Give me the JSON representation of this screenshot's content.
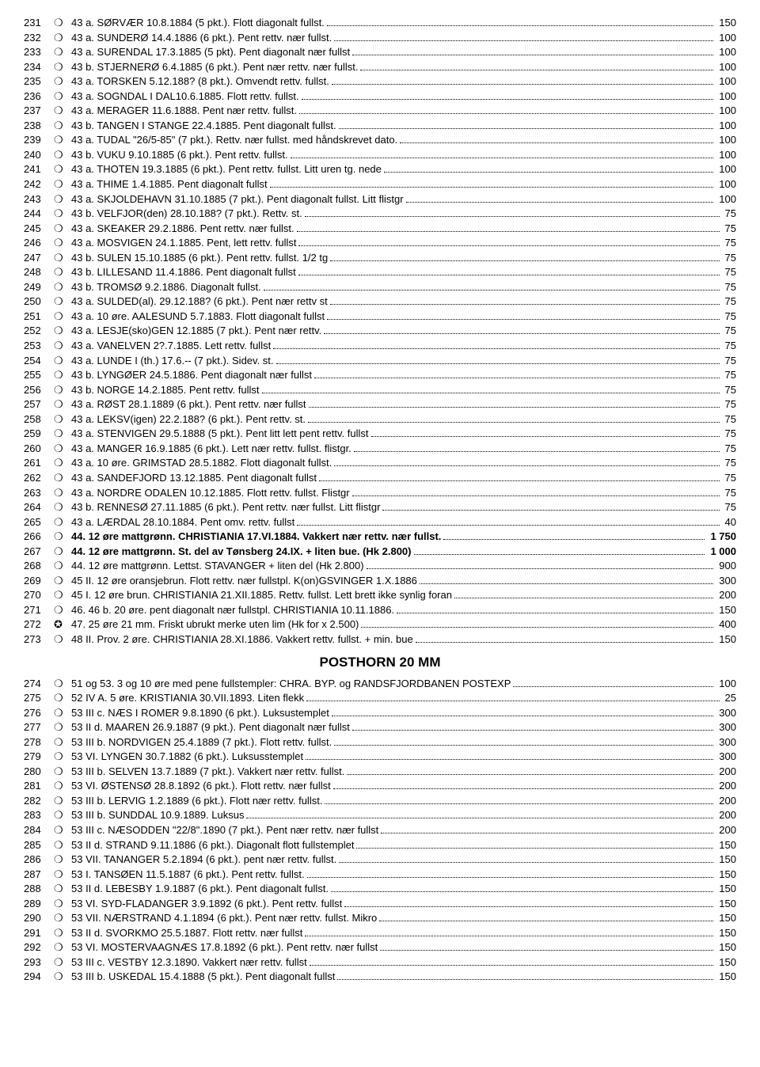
{
  "section1": [
    {
      "n": "231",
      "m": "❍",
      "d": "43 a. SØRVÆR 10.8.1884 (5 pkt.). Flott diagonalt fullst.",
      "p": "150"
    },
    {
      "n": "232",
      "m": "❍",
      "d": "43 a. SUNDERØ 14.4.1886 (6 pkt.). Pent rettv. nær fullst.",
      "p": "100"
    },
    {
      "n": "233",
      "m": "❍",
      "d": "43 a. SURENDAL 17.3.1885 (5 pkt). Pent diagonalt nær fullst",
      "p": "100"
    },
    {
      "n": "234",
      "m": "❍",
      "d": "43 b. STJERNERØ 6.4.1885 (6 pkt.). Pent nær rettv. nær fullst.",
      "p": "100"
    },
    {
      "n": "235",
      "m": "❍",
      "d": "43 a. TORSKEN 5.12.188? (8 pkt.). Omvendt rettv. fullst.",
      "p": "100"
    },
    {
      "n": "236",
      "m": "❍",
      "d": "43 a. SOGNDAL I DAL10.6.1885. Flott rettv. fullst.",
      "p": "100"
    },
    {
      "n": "237",
      "m": "❍",
      "d": "43 a. MERAGER 11.6.1888. Pent nær rettv. fullst.",
      "p": "100"
    },
    {
      "n": "238",
      "m": "❍",
      "d": "43 b. TANGEN I STANGE 22.4.1885. Pent diagonalt fullst.",
      "p": "100"
    },
    {
      "n": "239",
      "m": "❍",
      "d": "43 a. TUDAL \"26/5-85\" (7 pkt.). Rettv. nær fullst. med håndskrevet dato.",
      "p": "100"
    },
    {
      "n": "240",
      "m": "❍",
      "d": "43 b. VUKU 9.10.1885 (6 pkt.). Pent rettv. fullst.",
      "p": "100"
    },
    {
      "n": "241",
      "m": "❍",
      "d": "43 a. THOTEN 19.3.1885 (6 pkt.). Pent rettv. fullst. Litt uren tg. nede",
      "p": "100"
    },
    {
      "n": "242",
      "m": "❍",
      "d": "43 a. THIME 1.4.1885. Pent diagonalt fullst",
      "p": "100"
    },
    {
      "n": "243",
      "m": "❍",
      "d": "43 a. SKJOLDEHAVN 31.10.1885 (7 pkt.). Pent diagonalt fullst. Litt flistgr",
      "p": "100"
    },
    {
      "n": "244",
      "m": "❍",
      "d": "43 b. VELFJOR(den) 28.10.188? (7 pkt.). Rettv. st.",
      "p": "75"
    },
    {
      "n": "245",
      "m": "❍",
      "d": "43 a. SKEAKER 29.2.1886. Pent rettv. nær fullst.",
      "p": "75"
    },
    {
      "n": "246",
      "m": "❍",
      "d": "43 a. MOSVIGEN 24.1.1885. Pent, lett rettv. fullst",
      "p": "75"
    },
    {
      "n": "247",
      "m": "❍",
      "d": "43 b. SULEN 15.10.1885 (6 pkt.). Pent rettv. fullst. 1/2 tg",
      "p": "75"
    },
    {
      "n": "248",
      "m": "❍",
      "d": "43 b. LILLESAND 11.4.1886. Pent diagonalt fullst",
      "p": "75"
    },
    {
      "n": "249",
      "m": "❍",
      "d": "43 b. TROMSØ 9.2.1886. Diagonalt fullst.",
      "p": "75"
    },
    {
      "n": "250",
      "m": "❍",
      "d": "43 a. SULDED(al). 29.12.188? (6 pkt.). Pent nær rettv st",
      "p": "75"
    },
    {
      "n": "251",
      "m": "❍",
      "d": "43 a. 10 øre. AALESUND 5.7.1883. Flott diagonalt fullst",
      "p": "75"
    },
    {
      "n": "252",
      "m": "❍",
      "d": "43 a. LESJE(sko)GEN 12.1885 (7 pkt.). Pent nær rettv.",
      "p": "75"
    },
    {
      "n": "253",
      "m": "❍",
      "d": "43 a. VANELVEN 2?.7.1885. Lett rettv. fullst",
      "p": "75"
    },
    {
      "n": "254",
      "m": "❍",
      "d": "43 a. LUNDE I (th.) 17.6.-- (7 pkt.). Sidev. st.",
      "p": "75"
    },
    {
      "n": "255",
      "m": "❍",
      "d": "43 b. LYNGØER 24.5.1886. Pent diagonalt nær fullst",
      "p": "75"
    },
    {
      "n": "256",
      "m": "❍",
      "d": "43 b. NORGE 14.2.1885. Pent rettv. fullst",
      "p": "75"
    },
    {
      "n": "257",
      "m": "❍",
      "d": "43 a. RØST 28.1.1889 (6 pkt.). Pent rettv. nær fullst",
      "p": "75"
    },
    {
      "n": "258",
      "m": "❍",
      "d": "43 a. LEKSV(igen) 22.2.188? (6 pkt.). Pent rettv. st.",
      "p": "75"
    },
    {
      "n": "259",
      "m": "❍",
      "d": "43 a. STENVIGEN 29.5.1888 (5 pkt.). Pent litt lett pent rettv. fullst",
      "p": "75"
    },
    {
      "n": "260",
      "m": "❍",
      "d": "43 a. MANGER 16.9.1885 (6 pkt.). Lett nær rettv. fullst. flistgr.",
      "p": "75"
    },
    {
      "n": "261",
      "m": "❍",
      "d": "43 a. 10 øre. GRIMSTAD 28.5.1882. Flott diagonalt fullst.",
      "p": "75"
    },
    {
      "n": "262",
      "m": "❍",
      "d": "43 a. SANDEFJORD 13.12.1885. Pent diagonalt fullst",
      "p": "75"
    },
    {
      "n": "263",
      "m": "❍",
      "d": "43 a. NORDRE ODALEN 10.12.1885. Flott rettv. fullst. Flistgr",
      "p": "75"
    },
    {
      "n": "264",
      "m": "❍",
      "d": "43 b. RENNESØ 27.11.1885 (6 pkt.). Pent rettv. nær fullst. Litt flistgr",
      "p": "75"
    },
    {
      "n": "265",
      "m": "❍",
      "d": "43 a. LÆRDAL 28.10.1884. Pent omv. rettv. fullst",
      "p": "40"
    },
    {
      "n": "266",
      "m": "❍",
      "d": "44. 12 øre mattgrønn. CHRISTIANIA 17.VI.1884. Vakkert nær rettv. nær fullst.",
      "p": "1 750",
      "b": true
    },
    {
      "n": "267",
      "m": "❍",
      "d": "44. 12 øre mattgrønn. St. del av Tønsberg 24.IX. + liten bue. (Hk 2.800)",
      "p": "1 000",
      "b": true
    },
    {
      "n": "268",
      "m": "❍",
      "d": "44. 12 øre mattgrønn. Lettst. STAVANGER + liten del (Hk 2.800)",
      "p": "900"
    },
    {
      "n": "269",
      "m": "❍",
      "d": "45 II. 12 øre oransjebrun.  Flott rettv. nær fullstpl. K(on)GSVINGER 1.X.1886",
      "p": "300"
    },
    {
      "n": "270",
      "m": "❍",
      "d": "45 I. 12 øre brun. CHRISTIANIA 21.XII.1885. Rettv. fullst. Lett brett ikke synlig foran",
      "p": "200"
    },
    {
      "n": "271",
      "m": "❍",
      "d": "46. 46 b. 20 øre.   pent diagonalt nær fullstpl. CHRISTIANIA 10.11.1886.",
      "p": "150"
    },
    {
      "n": "272",
      "m": "✪",
      "d": "47. 25 øre 21 mm. Friskt ubrukt merke uten lim (Hk for x 2.500)",
      "p": "400"
    },
    {
      "n": "273",
      "m": "❍",
      "d": "48 II. Prov. 2 øre. CHRISTIANIA 28.XI.1886. Vakkert rettv. fullst. + min. bue",
      "p": "150"
    }
  ],
  "heading": "POSTHORN 20 MM",
  "section2": [
    {
      "n": "274",
      "m": "❍",
      "d": "51 og 53. 3 og 10 øre med pene fullstempler: CHRA. BYP. og RANDSFJORDBANEN POSTEXP",
      "p": "100"
    },
    {
      "n": "275",
      "m": "❍",
      "d": "52 IV A. 5 øre. KRISTIANIA 30.VII.1893. Liten flekk",
      "p": "25"
    },
    {
      "n": "276",
      "m": "❍",
      "d": "53 III c. NÆS I ROMER 9.8.1890 (6 pkt.). Luksustemplet",
      "p": "300"
    },
    {
      "n": "277",
      "m": "❍",
      "d": "53 II d. MAAREN 26.9.1887 (9 pkt.). Pent diagonalt nær fullst",
      "p": "300"
    },
    {
      "n": "278",
      "m": "❍",
      "d": "53 III b. NORDVIGEN 25.4.1889 (7 pkt.). Flott rettv. fullst.",
      "p": "300"
    },
    {
      "n": "279",
      "m": "❍",
      "d": "53 VI. LYNGEN 30.7.1882 (6 pkt.). Luksusstemplet",
      "p": "300"
    },
    {
      "n": "280",
      "m": "❍",
      "d": "53 III b. SELVEN 13.7.1889 (7 pkt.). Vakkert nær rettv. fullst.",
      "p": "200"
    },
    {
      "n": "281",
      "m": "❍",
      "d": "53 VI. ØSTENSØ 28.8.1892 (6 pkt.). Flott rettv. nær fullst",
      "p": "200"
    },
    {
      "n": "282",
      "m": "❍",
      "d": "53 III b. LERVIG 1.2.1889 (6 pkt.). Flott nær rettv. fullst.",
      "p": "200"
    },
    {
      "n": "283",
      "m": "❍",
      "d": "53 III b. SUNDDAL 10.9.1889. Luksus",
      "p": "200"
    },
    {
      "n": "284",
      "m": "❍",
      "d": "53 III c. NÆSODDEN \"22/8\".1890 (7 pkt.). Pent nær rettv. nær fullst",
      "p": "200"
    },
    {
      "n": "285",
      "m": "❍",
      "d": "53 II d. STRAND 9.11.1886 (6 pkt.). Diagonalt flott fullstemplet",
      "p": "150"
    },
    {
      "n": "286",
      "m": "❍",
      "d": "53 VII. TANANGER 5.2.1894 (6 pkt.). pent nær rettv. fullst.",
      "p": "150"
    },
    {
      "n": "287",
      "m": "❍",
      "d": "53 I. TANSØEN 11.5.1887 (6 pkt.). Pent rettv. fullst.",
      "p": "150"
    },
    {
      "n": "288",
      "m": "❍",
      "d": "53 II d. LEBESBY 1.9.1887 (6 pkt.). Pent diagonalt fullst.",
      "p": "150"
    },
    {
      "n": "289",
      "m": "❍",
      "d": "53 VI. SYD-FLADANGER 3.9.1892 (6 pkt.). Pent rettv. fullst",
      "p": "150"
    },
    {
      "n": "290",
      "m": "❍",
      "d": "53 VII. NÆRSTRAND 4.1.1894 (6 pkt.). Pent nær rettv. fullst. Mikro",
      "p": "150"
    },
    {
      "n": "291",
      "m": "❍",
      "d": "53 II d. SVORKMO 25.5.1887. Flott rettv. nær fullst",
      "p": "150"
    },
    {
      "n": "292",
      "m": "❍",
      "d": "53 VI. MOSTERVAAGNÆS 17.8.1892 (6 pkt.). Pent rettv. nær fullst",
      "p": "150"
    },
    {
      "n": "293",
      "m": "❍",
      "d": "53 III c. VESTBY 12.3.1890. Vakkert nær rettv. fullst",
      "p": "150"
    },
    {
      "n": "294",
      "m": "❍",
      "d": "53 III b. USKEDAL 15.4.1888 (5 pkt.). Pent diagonalt fullst",
      "p": "150"
    }
  ]
}
